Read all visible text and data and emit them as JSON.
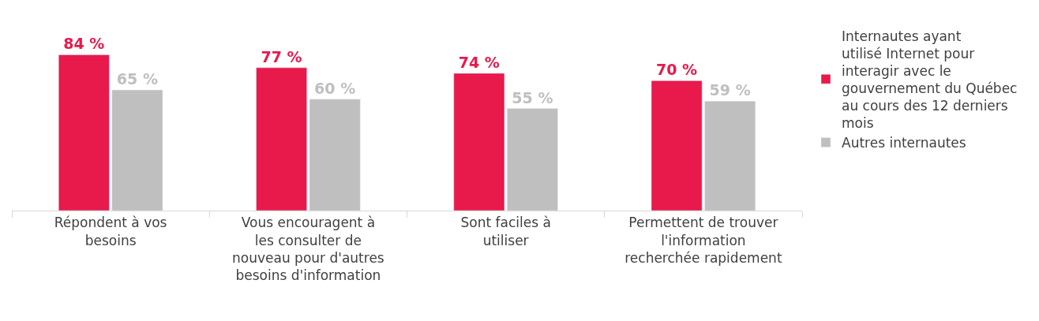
{
  "chart_data": {
    "type": "bar",
    "categories": [
      "Répondent à vos besoins",
      "Vous encouragent à les consulter de nouveau pour d'autres besoins d'information",
      "Sont faciles à utiliser",
      "Permettent de trouver l'information recherchée rapidement"
    ],
    "series": [
      {
        "name": "Internautes ayant utilisé Internet pour interagir avec le gouvernement du Québec au cours des 12 derniers mois",
        "color": "#e8194b",
        "values": [
          84,
          77,
          74,
          70
        ],
        "value_labels": [
          "84 %",
          "77 %",
          "74 %",
          "70 %"
        ]
      },
      {
        "name": "Autres internautes",
        "color": "#bfbfbf",
        "values": [
          65,
          60,
          55,
          59
        ],
        "value_labels": [
          "65 %",
          "60 %",
          "55 %",
          "59 %"
        ]
      }
    ],
    "legend": "right"
  }
}
